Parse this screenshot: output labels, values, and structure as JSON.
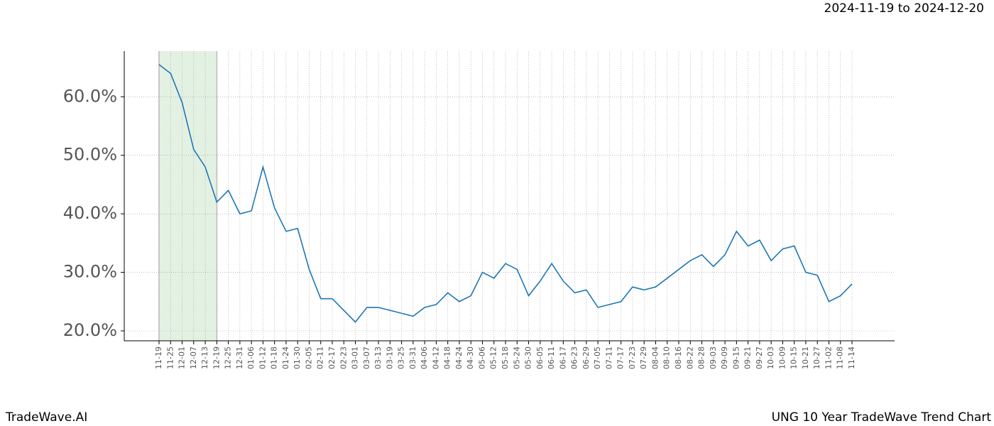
{
  "chart_data": {
    "type": "line",
    "subtitle": "2024-11-19 to 2024-12-20",
    "footer_left": "TradeWave.AI",
    "footer_right": "UNG 10 Year TradeWave Trend Chart",
    "categories": [
      "11-19",
      "11-25",
      "12-01",
      "12-07",
      "12-13",
      "12-19",
      "12-25",
      "12-31",
      "01-06",
      "01-12",
      "01-18",
      "01-24",
      "01-30",
      "02-05",
      "02-11",
      "02-17",
      "02-23",
      "03-01",
      "03-07",
      "03-13",
      "03-19",
      "03-25",
      "03-31",
      "04-06",
      "04-12",
      "04-18",
      "04-24",
      "04-30",
      "05-06",
      "05-12",
      "05-18",
      "05-24",
      "05-30",
      "06-05",
      "06-11",
      "06-17",
      "06-23",
      "06-29",
      "07-05",
      "07-11",
      "07-17",
      "07-23",
      "07-29",
      "08-04",
      "08-10",
      "08-16",
      "08-22",
      "08-28",
      "09-03",
      "09-09",
      "09-15",
      "09-21",
      "09-27",
      "10-03",
      "10-09",
      "10-15",
      "10-21",
      "10-27",
      "11-02",
      "11-08",
      "11-14"
    ],
    "series": [
      {
        "color": "#1f77b4",
        "values": [
          65.5,
          64,
          59,
          51,
          48,
          42,
          44,
          40,
          40.5,
          48,
          41,
          37,
          37.5,
          30.5,
          25.5,
          25.5,
          23.5,
          21.5,
          24,
          24,
          23.5,
          23,
          22.5,
          24,
          24.5,
          26.5,
          25,
          26,
          30,
          29,
          31.5,
          30.5,
          26,
          28.5,
          31.5,
          28.5,
          26.5,
          27,
          24,
          24.5,
          25,
          27.5,
          27,
          27.5,
          29,
          30.5,
          32,
          33,
          31,
          33,
          37,
          34.5,
          35.5,
          32,
          34,
          34.5,
          30,
          29.5,
          25,
          26,
          28
        ]
      }
    ],
    "ylim": [
      18.3,
      67.8
    ],
    "yticks": [
      {
        "value": 20,
        "label": "20.0%"
      },
      {
        "value": 30,
        "label": "30.0%"
      },
      {
        "value": 40,
        "label": "40.0%"
      },
      {
        "value": 50,
        "label": "50.0%"
      },
      {
        "value": 60,
        "label": "60.0%"
      }
    ],
    "grid": true,
    "highlight": {
      "from": "11-19",
      "to": "12-19",
      "color": "#e3f1e3"
    }
  }
}
